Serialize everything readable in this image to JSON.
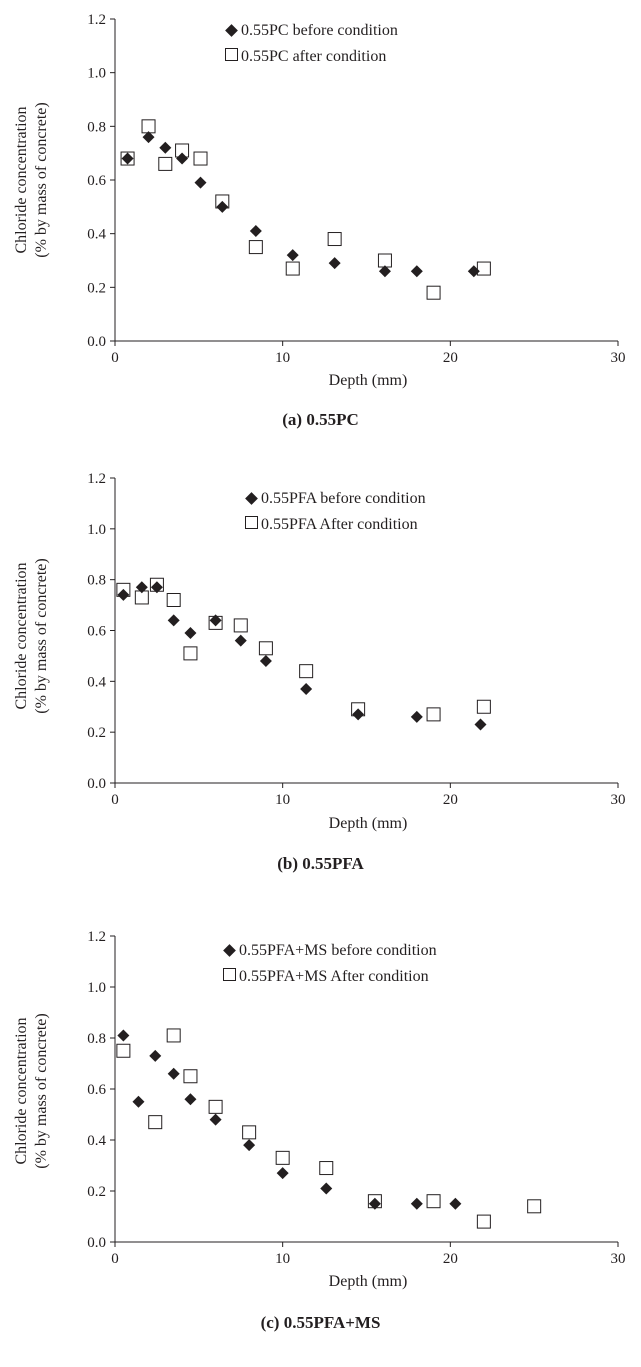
{
  "charts": [
    {
      "caption": "(a) 0.55PC",
      "xlabel": "Depth (mm)",
      "ylabel_line1": "Chloride concentration",
      "ylabel_line2": "(% by mass of concrete)",
      "xticks": [
        "0",
        "10",
        "20",
        "30"
      ],
      "yticks": [
        "0.0",
        "0.2",
        "0.4",
        "0.6",
        "0.8",
        "1.0",
        "1.2"
      ],
      "legend": [
        "0.55PC before condition",
        "0.55PC after condition"
      ]
    },
    {
      "caption": "(b) 0.55PFA",
      "xlabel": "Depth (mm)",
      "ylabel_line1": "Chloride concentration",
      "ylabel_line2": "(% by mass of concrete)",
      "xticks": [
        "0",
        "10",
        "20",
        "30"
      ],
      "yticks": [
        "0.0",
        "0.2",
        "0.4",
        "0.6",
        "0.8",
        "1.0",
        "1.2"
      ],
      "legend": [
        "0.55PFA before condition",
        "0.55PFA After condition"
      ]
    },
    {
      "caption": "(c) 0.55PFA+MS",
      "xlabel": "Depth (mm)",
      "ylabel_line1": "Chloride concentration",
      "ylabel_line2": "(% by mass of concrete)",
      "xticks": [
        "0",
        "10",
        "20",
        "30"
      ],
      "yticks": [
        "0.0",
        "0.2",
        "0.4",
        "0.6",
        "0.8",
        "1.0",
        "1.2"
      ],
      "legend": [
        "0.55PFA+MS before condition",
        "0.55PFA+MS After condition"
      ]
    }
  ],
  "chart_data": [
    {
      "type": "scatter",
      "title": "(a) 0.55PC",
      "xlabel": "Depth (mm)",
      "ylabel": "Chloride concentration (% by mass of concrete)",
      "xlim": [
        0,
        30
      ],
      "ylim": [
        0,
        1.2
      ],
      "grid": false,
      "legend_position": "top",
      "series": [
        {
          "name": "0.55PC before condition",
          "marker": "filled-diamond",
          "x": [
            0.75,
            2.0,
            3.0,
            4.0,
            5.1,
            6.4,
            8.4,
            10.6,
            13.1,
            16.1,
            18.0,
            21.4
          ],
          "y": [
            0.68,
            0.76,
            0.72,
            0.68,
            0.59,
            0.5,
            0.41,
            0.32,
            0.29,
            0.26,
            0.26,
            0.26
          ]
        },
        {
          "name": "0.55PC after condition",
          "marker": "open-square",
          "x": [
            0.75,
            2.0,
            3.0,
            4.0,
            5.1,
            6.4,
            8.4,
            10.6,
            13.1,
            16.1,
            19.0,
            22.0
          ],
          "y": [
            0.68,
            0.8,
            0.66,
            0.71,
            0.68,
            0.52,
            0.35,
            0.27,
            0.38,
            0.3,
            0.18,
            0.27
          ]
        }
      ]
    },
    {
      "type": "scatter",
      "title": "(b) 0.55PFA",
      "xlabel": "Depth (mm)",
      "ylabel": "Chloride concentration (% by mass of concrete)",
      "xlim": [
        0,
        30
      ],
      "ylim": [
        0,
        1.2
      ],
      "grid": false,
      "legend_position": "top",
      "series": [
        {
          "name": "0.55PFA before condition",
          "marker": "filled-diamond",
          "x": [
            0.5,
            1.6,
            2.5,
            3.5,
            4.5,
            6.0,
            7.5,
            9.0,
            11.4,
            14.5,
            18.0,
            21.8
          ],
          "y": [
            0.74,
            0.77,
            0.77,
            0.64,
            0.59,
            0.64,
            0.56,
            0.48,
            0.37,
            0.27,
            0.26,
            0.23
          ]
        },
        {
          "name": "0.55PFA After condition",
          "marker": "open-square",
          "x": [
            0.5,
            1.6,
            2.5,
            3.5,
            4.5,
            6.0,
            7.5,
            9.0,
            11.4,
            14.5,
            19.0,
            22.0
          ],
          "y": [
            0.76,
            0.73,
            0.78,
            0.72,
            0.51,
            0.63,
            0.62,
            0.53,
            0.44,
            0.29,
            0.27,
            0.3
          ]
        }
      ]
    },
    {
      "type": "scatter",
      "title": "(c) 0.55PFA+MS",
      "xlabel": "Depth (mm)",
      "ylabel": "Chloride concentration (% by mass of concrete)",
      "xlim": [
        0,
        30
      ],
      "ylim": [
        0,
        1.2
      ],
      "grid": false,
      "legend_position": "top",
      "series": [
        {
          "name": "0.55PFA+MS before condition",
          "marker": "filled-diamond",
          "x": [
            0.5,
            1.4,
            2.4,
            3.5,
            4.5,
            6.0,
            8.0,
            10.0,
            12.6,
            15.5,
            18.0,
            20.3
          ],
          "y": [
            0.81,
            0.55,
            0.73,
            0.66,
            0.56,
            0.48,
            0.38,
            0.27,
            0.21,
            0.15,
            0.15,
            0.15
          ]
        },
        {
          "name": "0.55PFA+MS After condition",
          "marker": "open-square",
          "x": [
            0.5,
            2.4,
            3.5,
            4.5,
            6.0,
            8.0,
            10.0,
            12.6,
            15.5,
            19.0,
            22.0,
            25.0
          ],
          "y": [
            0.75,
            0.47,
            0.81,
            0.65,
            0.53,
            0.43,
            0.33,
            0.29,
            0.16,
            0.16,
            0.08,
            0.14
          ]
        }
      ]
    }
  ]
}
